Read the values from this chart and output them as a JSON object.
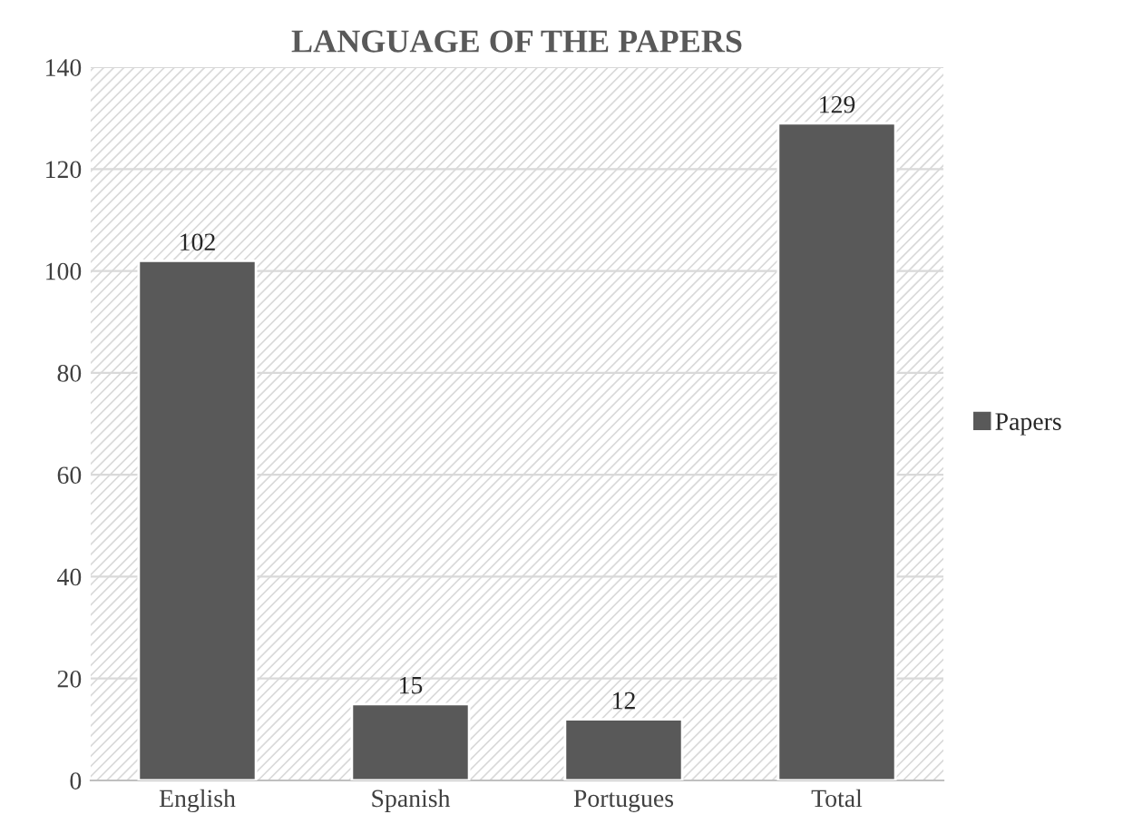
{
  "chart_data": {
    "type": "bar",
    "title": "LANGUAGE OF THE PAPERS",
    "categories": [
      "English",
      "Spanish",
      "Portugues",
      "Total"
    ],
    "series": [
      {
        "name": "Papers",
        "color": "#595959",
        "values": [
          102,
          15,
          12,
          129
        ]
      }
    ],
    "ylim": [
      0,
      140
    ],
    "yticks": [
      0,
      20,
      40,
      60,
      80,
      100,
      120,
      140
    ],
    "grid": "y",
    "legend": "right",
    "data_labels": true
  }
}
